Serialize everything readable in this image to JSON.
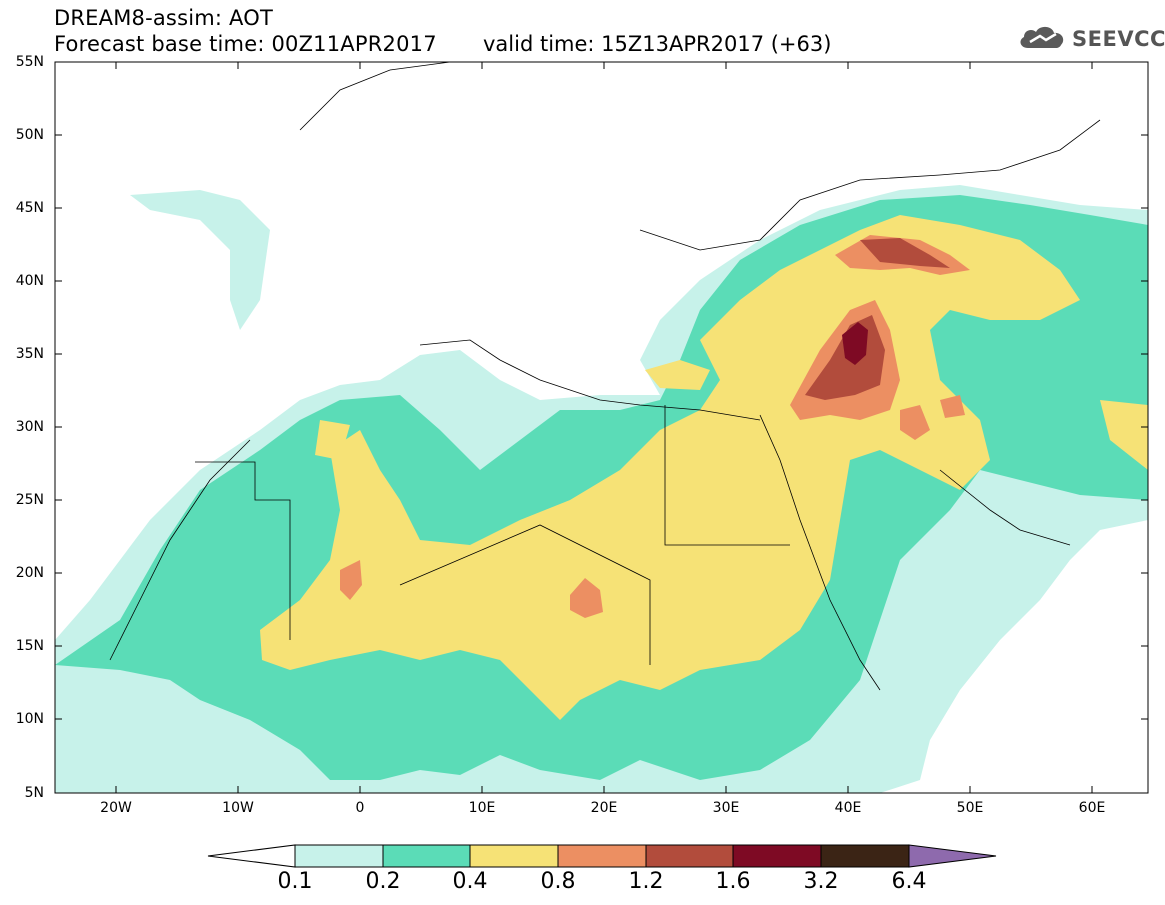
{
  "header": {
    "title_line1": "DREAM8-assim: AOT",
    "title_line2": "Forecast base time: 00Z11APR2017",
    "valid_time": "valid time: 15Z13APR2017 (+63)",
    "logo_text": "SEEVCCC",
    "logo_icon": "cloud-icon"
  },
  "map": {
    "lat_labels": [
      "55N",
      "50N",
      "45N",
      "40N",
      "35N",
      "30N",
      "25N",
      "20N",
      "15N",
      "10N",
      "5N"
    ],
    "lon_labels": [
      "20W",
      "10W",
      "0",
      "10E",
      "20E",
      "30E",
      "40E",
      "50E",
      "60E"
    ]
  },
  "colorbar": {
    "labels": [
      "0.1",
      "0.2",
      "0.4",
      "0.8",
      "1.2",
      "1.6",
      "3.2",
      "6.4"
    ],
    "colors": [
      "#ffffff",
      "#c7f2ea",
      "#5bdcb7",
      "#f6e276",
      "#ec8f62",
      "#b24c3c",
      "#7e0a24",
      "#3b2415",
      "#8e6aad"
    ]
  }
}
